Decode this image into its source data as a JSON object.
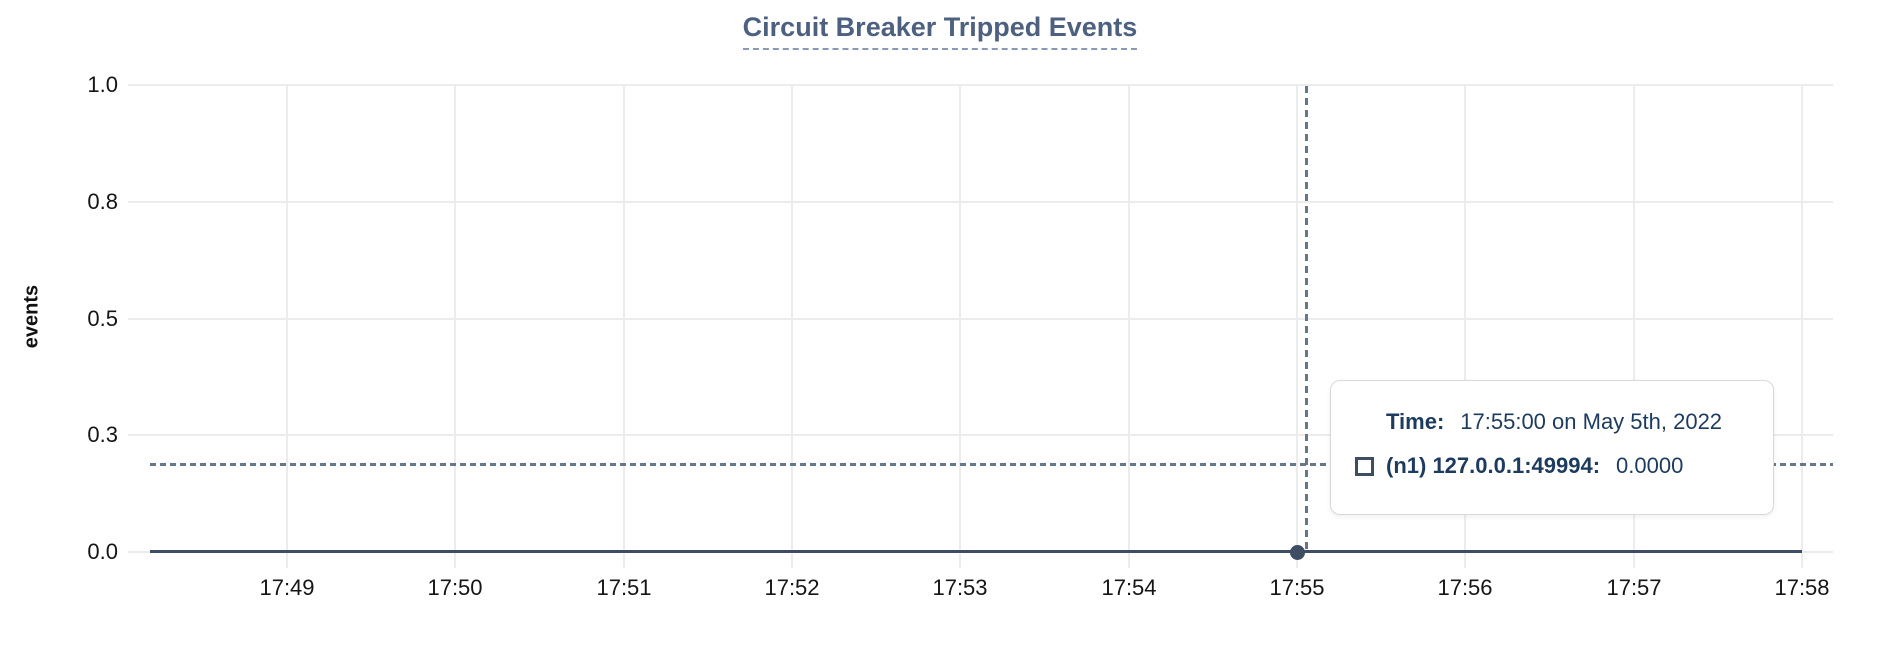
{
  "title": "Circuit Breaker Tripped Events",
  "colors": {
    "title": "#4d6080",
    "title_underline": "#8b9ab3",
    "gridline": "#ececec",
    "series_line": "#3e4d63",
    "crosshair": "#64788a",
    "tooltip_text": "#1d3a5f",
    "tooltip_border": "#d9d9d9",
    "tick_text": "#151515"
  },
  "chart_data": {
    "type": "line",
    "title": "Circuit Breaker Tripped Events",
    "xlabel": "",
    "ylabel": "events",
    "x_tick_labels": [
      "17:49",
      "17:50",
      "17:51",
      "17:52",
      "17:53",
      "17:54",
      "17:55",
      "17:56",
      "17:57",
      "17:58"
    ],
    "y_tick_labels": [
      "1.0",
      "0.8",
      "0.5",
      "0.3",
      "0.0"
    ],
    "y_tick_values": [
      1.0,
      0.75,
      0.5,
      0.25,
      0.0
    ],
    "ylim": [
      0.0,
      1.0
    ],
    "grid": true,
    "legend_position": "none",
    "series": [
      {
        "name": "(n1) 127.0.0.1:49994",
        "y_constant": 0.0,
        "x_start": "17:48",
        "x_end": "17:58",
        "marker_point": {
          "x": "17:55:00",
          "y": 0.0
        }
      }
    ],
    "crosshair": {
      "x": "17:55:00",
      "y_value_approx": 0.19
    }
  },
  "tooltip": {
    "time_label": "Time:",
    "time_value": "17:55:00 on May 5th, 2022",
    "series_label": "(n1) 127.0.0.1:49994:",
    "series_value": "0.0000"
  }
}
